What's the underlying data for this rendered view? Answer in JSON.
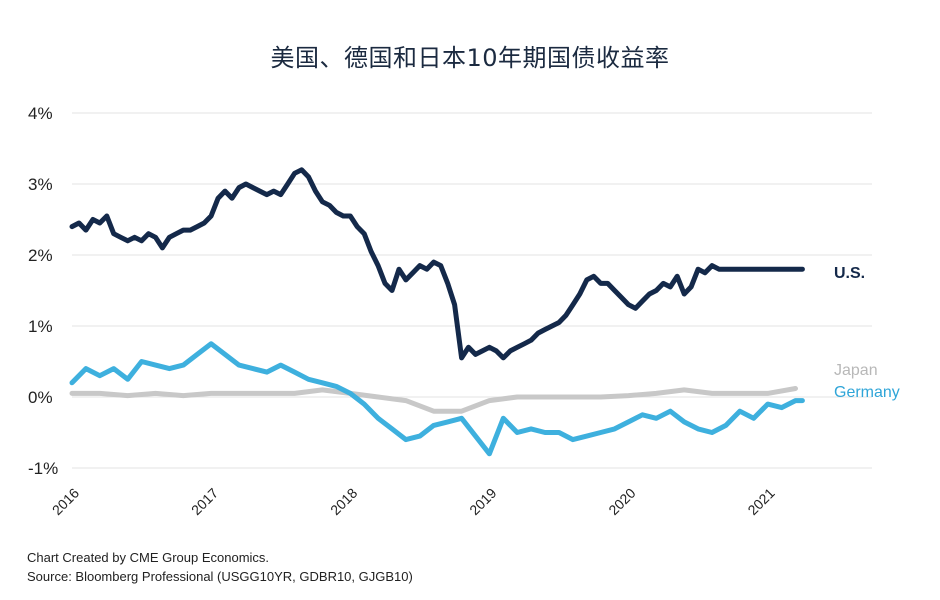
{
  "chart_data": {
    "type": "line",
    "title": "美国、德国和日本10年期国债收益率",
    "xlabel": "",
    "ylabel": "",
    "xlim": [
      2016.0,
      2021.75
    ],
    "ylim": [
      -1,
      4
    ],
    "grid": true,
    "y_ticks": [
      {
        "value": 4,
        "label": "4%"
      },
      {
        "value": 3,
        "label": "3%"
      },
      {
        "value": 2,
        "label": "2%"
      },
      {
        "value": 1,
        "label": "1%"
      },
      {
        "value": 0,
        "label": "0%"
      },
      {
        "value": -1,
        "label": "-1%"
      }
    ],
    "x_ticks": [
      {
        "value": 2016,
        "label": "2016"
      },
      {
        "value": 2017,
        "label": "2017"
      },
      {
        "value": 2018,
        "label": "2018"
      },
      {
        "value": 2019,
        "label": "2019"
      },
      {
        "value": 2020,
        "label": "2020"
      },
      {
        "value": 2021,
        "label": "2021"
      }
    ],
    "series": [
      {
        "name": "U.S.",
        "color": "#14294a",
        "label_color": "#14294a",
        "x": [
          2016.0,
          2016.05,
          2016.1,
          2016.15,
          2016.2,
          2016.25,
          2016.3,
          2016.35,
          2016.4,
          2016.45,
          2016.5,
          2016.55,
          2016.6,
          2016.65,
          2016.7,
          2016.75,
          2016.8,
          2016.85,
          2016.9,
          2016.95,
          2017.0,
          2017.05,
          2017.1,
          2017.15,
          2017.2,
          2017.25,
          2017.3,
          2017.35,
          2017.4,
          2017.45,
          2017.5,
          2017.55,
          2017.6,
          2017.65,
          2017.7,
          2017.75,
          2017.8,
          2017.85,
          2017.9,
          2017.95,
          2018.0,
          2018.05,
          2018.1,
          2018.15,
          2018.2,
          2018.25,
          2018.3,
          2018.35,
          2018.4,
          2018.45,
          2018.5,
          2018.55,
          2018.6,
          2018.65,
          2018.7,
          2018.75,
          2018.8,
          2018.85,
          2018.9,
          2018.95,
          2019.0,
          2019.05,
          2019.1,
          2019.15,
          2019.2,
          2019.25,
          2019.3,
          2019.35,
          2019.4,
          2019.45,
          2019.5,
          2019.55,
          2019.6,
          2019.65,
          2019.7,
          2019.75,
          2019.8,
          2019.85,
          2019.9,
          2019.95,
          2020.0,
          2020.05,
          2020.1,
          2020.15,
          2020.2,
          2020.25,
          2020.3,
          2020.35,
          2020.4,
          2020.45,
          2020.5,
          2020.55,
          2020.6,
          2020.65,
          2020.7,
          2020.75,
          2020.8,
          2020.85,
          2020.9,
          2020.95,
          2021.0,
          2021.05,
          2021.1,
          2021.15,
          2021.2,
          2021.25
        ],
        "values": [
          2.4,
          2.45,
          2.35,
          2.5,
          2.45,
          2.55,
          2.3,
          2.25,
          2.2,
          2.25,
          2.2,
          2.3,
          2.25,
          2.1,
          2.25,
          2.3,
          2.35,
          2.35,
          2.4,
          2.45,
          2.55,
          2.8,
          2.9,
          2.8,
          2.95,
          3.0,
          2.95,
          2.9,
          2.85,
          2.9,
          2.85,
          3.0,
          3.15,
          3.2,
          3.1,
          2.9,
          2.75,
          2.7,
          2.6,
          2.55,
          2.55,
          2.4,
          2.3,
          2.05,
          1.85,
          1.6,
          1.5,
          1.8,
          1.65,
          1.75,
          1.85,
          1.8,
          1.9,
          1.85,
          1.6,
          1.3,
          0.55,
          0.7,
          0.6,
          0.65,
          0.7,
          0.65,
          0.55,
          0.65,
          0.7,
          0.75,
          0.8,
          0.9,
          0.95,
          1.0,
          1.05,
          1.15,
          1.3,
          1.45,
          1.65,
          1.7,
          1.6,
          1.6,
          1.5,
          1.4,
          1.3,
          1.25,
          1.35,
          1.45,
          1.5,
          1.6,
          1.55,
          1.7,
          1.45,
          1.55,
          1.8,
          1.75,
          1.85,
          1.8,
          1.8,
          1.8,
          1.8,
          1.8,
          1.8,
          1.8,
          1.8,
          1.8,
          1.8,
          1.8,
          1.8,
          1.8
        ]
      },
      {
        "name": "Japan",
        "color": "#c8c8c8",
        "label_color": "#b8b8b8",
        "x": [
          2016.0,
          2016.2,
          2016.4,
          2016.6,
          2016.8,
          2017.0,
          2017.2,
          2017.4,
          2017.6,
          2017.8,
          2018.0,
          2018.2,
          2018.4,
          2018.6,
          2018.8,
          2019.0,
          2019.2,
          2019.4,
          2019.6,
          2019.8,
          2020.0,
          2020.2,
          2020.4,
          2020.6,
          2020.8,
          2021.0,
          2021.2
        ],
        "values": [
          0.05,
          0.05,
          0.02,
          0.05,
          0.02,
          0.05,
          0.05,
          0.05,
          0.05,
          0.1,
          0.05,
          0.0,
          -0.05,
          -0.2,
          -0.2,
          -0.05,
          0.0,
          0.0,
          0.0,
          0.0,
          0.02,
          0.05,
          0.1,
          0.05,
          0.05,
          0.05,
          0.12
        ]
      },
      {
        "name": "Germany",
        "color": "#3eb0de",
        "label_color": "#2fa5d8",
        "x": [
          2016.0,
          2016.1,
          2016.2,
          2016.3,
          2016.4,
          2016.5,
          2016.6,
          2016.7,
          2016.8,
          2016.9,
          2017.0,
          2017.1,
          2017.2,
          2017.3,
          2017.4,
          2017.5,
          2017.6,
          2017.7,
          2017.8,
          2017.9,
          2018.0,
          2018.1,
          2018.2,
          2018.3,
          2018.4,
          2018.5,
          2018.6,
          2018.7,
          2018.8,
          2018.9,
          2019.0,
          2019.1,
          2019.2,
          2019.3,
          2019.4,
          2019.5,
          2019.6,
          2019.7,
          2019.8,
          2019.9,
          2020.0,
          2020.1,
          2020.2,
          2020.3,
          2020.4,
          2020.5,
          2020.6,
          2020.7,
          2020.8,
          2020.9,
          2021.0,
          2021.1,
          2021.2,
          2021.25
        ],
        "values": [
          0.2,
          0.4,
          0.3,
          0.4,
          0.25,
          0.5,
          0.45,
          0.4,
          0.45,
          0.6,
          0.75,
          0.6,
          0.45,
          0.4,
          0.35,
          0.45,
          0.35,
          0.25,
          0.2,
          0.15,
          0.05,
          -0.1,
          -0.3,
          -0.45,
          -0.6,
          -0.55,
          -0.4,
          -0.35,
          -0.3,
          -0.55,
          -0.8,
          -0.3,
          -0.5,
          -0.45,
          -0.5,
          -0.5,
          -0.6,
          -0.55,
          -0.5,
          -0.45,
          -0.35,
          -0.25,
          -0.3,
          -0.2,
          -0.35,
          -0.45,
          -0.5,
          -0.4,
          -0.2,
          -0.3,
          -0.1,
          -0.15,
          -0.05,
          -0.05
        ]
      }
    ]
  },
  "footnotes": {
    "line1": "Chart Created by CME Group Economics.",
    "line2": "Source: Bloomberg Professional (USGG10YR, GDBR10, GJGB10)"
  }
}
